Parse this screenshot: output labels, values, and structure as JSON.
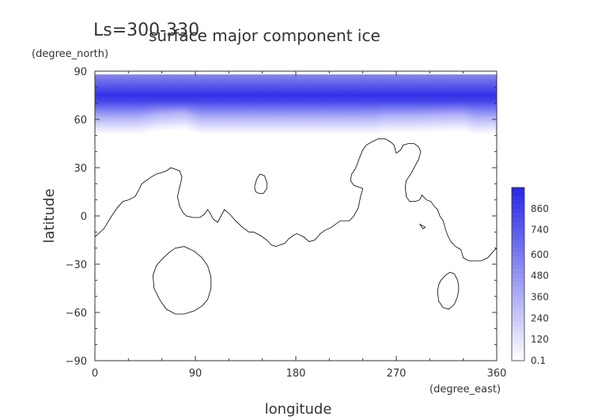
{
  "chart_data": {
    "type": "heatmap",
    "title": "surface major component ice",
    "subtitle": "Ls=300-330",
    "xlabel": "longitude",
    "ylabel": "latitude",
    "xunit": "(degree_east)",
    "yunit": "(degree_north)",
    "xlim": [
      0,
      360
    ],
    "ylim": [
      -90,
      90
    ],
    "xticks": [
      "0",
      "90",
      "180",
      "270",
      "360"
    ],
    "yticks": [
      "90",
      "60",
      "30",
      "0",
      "−30",
      "−60",
      "−90"
    ],
    "colorbar_ticks": [
      "860",
      "740",
      "600",
      "480",
      "360",
      "240",
      "120",
      "0.1"
    ],
    "colorbar_levels": [
      0.1,
      120,
      240,
      360,
      480,
      600,
      740,
      860,
      980
    ],
    "colors": {
      "low": "#ffffff",
      "high": "#2626e6",
      "coastline": "#000000"
    },
    "ice_field": {
      "lat_max": 88,
      "edge_lat": [
        [
          0,
          51
        ],
        [
          40,
          51
        ],
        [
          55,
          53
        ],
        [
          80,
          54
        ],
        [
          90,
          52
        ],
        [
          95,
          51
        ],
        [
          190,
          51
        ],
        [
          250,
          51
        ],
        [
          262,
          52
        ],
        [
          285,
          52
        ],
        [
          330,
          53
        ],
        [
          340,
          51
        ],
        [
          360,
          51
        ]
      ],
      "peak_lat": 75,
      "peak_value": 980
    },
    "coastlines": [
      [
        [
          0,
          -13
        ],
        [
          8,
          -8
        ],
        [
          15,
          0
        ],
        [
          20,
          5
        ],
        [
          25,
          9
        ],
        [
          30,
          10
        ],
        [
          36,
          12
        ],
        [
          40,
          17
        ],
        [
          42,
          20
        ],
        [
          46,
          22
        ],
        [
          50,
          24
        ],
        [
          55,
          26
        ],
        [
          60,
          27
        ],
        [
          64,
          28
        ],
        [
          68,
          30
        ],
        [
          72,
          29
        ],
        [
          76,
          28
        ],
        [
          78,
          24
        ],
        [
          76,
          18
        ],
        [
          74,
          12
        ],
        [
          76,
          6
        ],
        [
          79,
          2
        ],
        [
          82,
          0
        ],
        [
          88,
          -1
        ],
        [
          94,
          -1
        ],
        [
          98,
          1
        ],
        [
          101,
          4
        ],
        [
          103,
          2
        ],
        [
          106,
          -2
        ],
        [
          110,
          -4
        ],
        [
          113,
          0
        ],
        [
          116,
          4
        ],
        [
          121,
          1
        ],
        [
          126,
          -3
        ],
        [
          132,
          -7
        ],
        [
          138,
          -10
        ],
        [
          142,
          -10
        ],
        [
          148,
          -12
        ],
        [
          154,
          -15
        ],
        [
          158,
          -18
        ],
        [
          162,
          -19
        ],
        [
          166,
          -18
        ],
        [
          170,
          -17
        ],
        [
          174,
          -14
        ],
        [
          178,
          -12
        ],
        [
          181,
          -11
        ],
        [
          187,
          -13
        ],
        [
          192,
          -16
        ],
        [
          197,
          -15
        ],
        [
          202,
          -11
        ],
        [
          206,
          -9
        ],
        [
          212,
          -7
        ],
        [
          220,
          -3
        ],
        [
          228,
          -3
        ],
        [
          232,
          0
        ],
        [
          236,
          5
        ],
        [
          238,
          12
        ],
        [
          240,
          17
        ],
        [
          236,
          18
        ],
        [
          232,
          19
        ],
        [
          229,
          22
        ],
        [
          230,
          26
        ],
        [
          233,
          29
        ],
        [
          235,
          32
        ],
        [
          237,
          36
        ],
        [
          240,
          41
        ],
        [
          243,
          44
        ],
        [
          248,
          46
        ],
        [
          254,
          48
        ],
        [
          260,
          48
        ],
        [
          265,
          46
        ],
        [
          268,
          44
        ],
        [
          270,
          39
        ],
        [
          274,
          41
        ],
        [
          276,
          44
        ],
        [
          281,
          45
        ],
        [
          286,
          45
        ],
        [
          290,
          43
        ],
        [
          292,
          40
        ],
        [
          290,
          35
        ],
        [
          286,
          30
        ],
        [
          283,
          26
        ],
        [
          279,
          22
        ],
        [
          278,
          18
        ],
        [
          279,
          12
        ],
        [
          282,
          9
        ],
        [
          287,
          9
        ],
        [
          291,
          10
        ],
        [
          293,
          13
        ],
        [
          297,
          10
        ],
        [
          301,
          9
        ],
        [
          304,
          6
        ],
        [
          307,
          4
        ],
        [
          309,
          0
        ],
        [
          312,
          -3
        ],
        [
          314,
          -8
        ],
        [
          316,
          -12
        ],
        [
          319,
          -16
        ],
        [
          323,
          -19
        ],
        [
          328,
          -21
        ],
        [
          330,
          -26
        ],
        [
          335,
          -28
        ],
        [
          340,
          -28
        ],
        [
          346,
          -28
        ],
        [
          352,
          -26
        ],
        [
          357,
          -22
        ],
        [
          360,
          -20
        ]
      ],
      [
        [
          60,
          -27
        ],
        [
          66,
          -23
        ],
        [
          72,
          -20
        ],
        [
          80,
          -19
        ],
        [
          89,
          -22
        ],
        [
          96,
          -26
        ],
        [
          101,
          -31
        ],
        [
          104,
          -38
        ],
        [
          104,
          -45
        ],
        [
          101,
          -52
        ],
        [
          96,
          -56
        ],
        [
          89,
          -59
        ],
        [
          80,
          -61
        ],
        [
          72,
          -61
        ],
        [
          64,
          -58
        ],
        [
          58,
          -52
        ],
        [
          53,
          -45
        ],
        [
          52,
          -37
        ],
        [
          55,
          -31
        ],
        [
          60,
          -27
        ]
      ],
      [
        [
          143,
          18
        ],
        [
          145,
          23
        ],
        [
          148,
          26
        ],
        [
          152,
          25
        ],
        [
          154,
          21
        ],
        [
          154,
          17
        ],
        [
          151,
          14
        ],
        [
          147,
          14
        ],
        [
          144,
          15
        ],
        [
          143,
          18
        ]
      ],
      [
        [
          310,
          -40
        ],
        [
          314,
          -37
        ],
        [
          318,
          -35
        ],
        [
          322,
          -36
        ],
        [
          325,
          -40
        ],
        [
          326,
          -45
        ],
        [
          325,
          -50
        ],
        [
          322,
          -55
        ],
        [
          317,
          -58
        ],
        [
          312,
          -57
        ],
        [
          308,
          -53
        ],
        [
          307,
          -47
        ],
        [
          308,
          -43
        ],
        [
          310,
          -40
        ]
      ],
      [
        [
          291,
          -5
        ],
        [
          294,
          -8
        ],
        [
          296,
          -7
        ],
        [
          293,
          -6
        ],
        [
          291,
          -5
        ]
      ]
    ]
  }
}
